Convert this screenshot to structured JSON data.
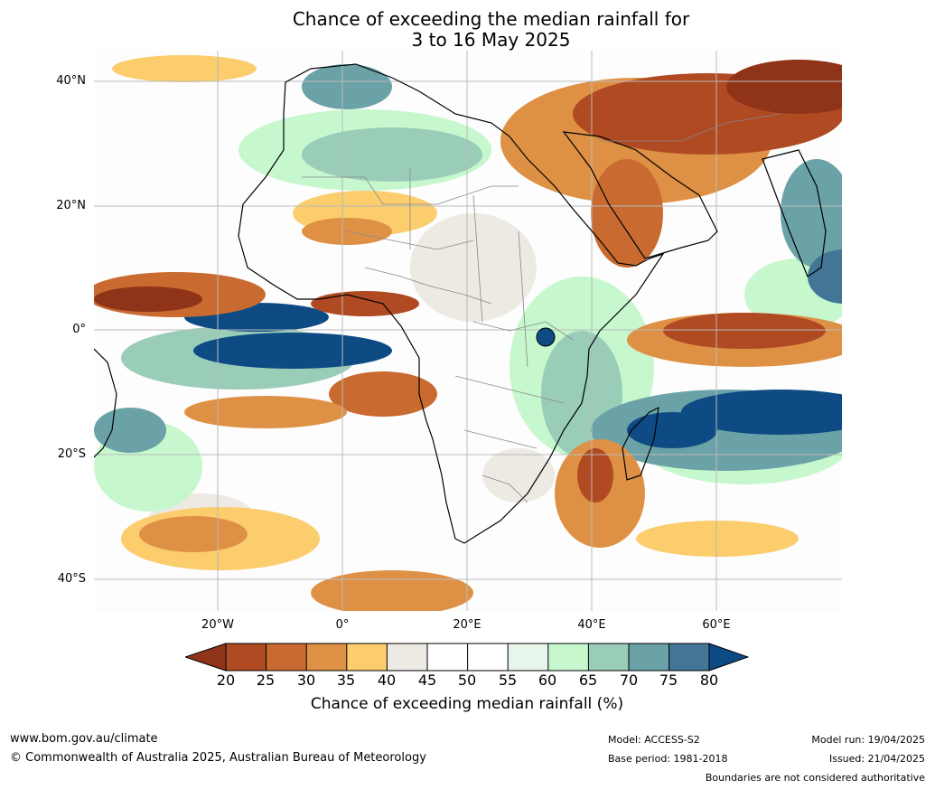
{
  "title": {
    "line1": "Chance of exceeding the median rainfall for",
    "line2": "3 to 16 May 2025"
  },
  "map": {
    "latitude_labels": [
      "40°N",
      "20°N",
      "0°",
      "20°S",
      "40°S"
    ],
    "longitude_labels": [
      "20°W",
      "0°",
      "20°E",
      "40°E",
      "60°E"
    ],
    "boundaries": "Boundaries are not considered authoritative",
    "palette": {
      "dry_extreme": "#8f3418",
      "dry_strong": "#b04a22",
      "dry": "#c96a30",
      "dry_mild": "#de9145",
      "dry_slight": "#fbcd6d",
      "neutral_dry": "#ede9e3",
      "neutral": "#ffffff",
      "wet_slight": "#e8f5ea",
      "wet_mild": "#c6f7cd",
      "wet": "#99cdb8",
      "wet_strong": "#6aa2a7",
      "wet_very": "#427596",
      "wet_extreme": "#0e4b84",
      "coastline": "#000000",
      "borders": "#888888",
      "grid": "#bbbbbb"
    }
  },
  "colorbar": {
    "ticks": [
      "20",
      "25",
      "30",
      "35",
      "40",
      "45",
      "50",
      "55",
      "60",
      "65",
      "70",
      "75",
      "80"
    ],
    "label": "Chance of exceeding median rainfall (%)"
  },
  "footer": {
    "website": "www.bom.gov.au/climate",
    "copyright": "© Commonwealth of Australia 2025, Australian Bureau of Meteorology",
    "model": "Model: ACCESS-S2",
    "base_period": "Base period: 1981-2018",
    "model_run": "Model run: 19/04/2025",
    "issued": "Issued: 21/04/2025"
  }
}
